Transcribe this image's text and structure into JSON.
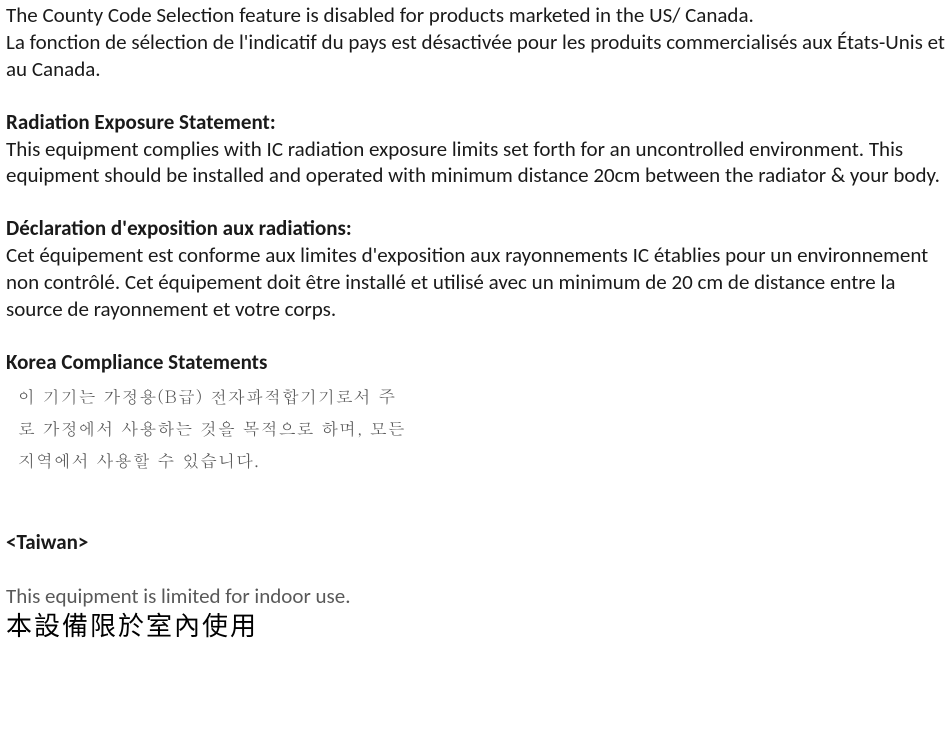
{
  "p1_en": "The County Code Selection feature is disabled for products marketed in the US/ Canada.",
  "p1_fr": "La fonction de sélection de l'indicatif du pays est désactivée pour les produits commercialisés aux États-Unis et au Canada.",
  "rad_heading": "Radiation Exposure Statement:",
  "rad_body": "This equipment complies with IC radiation exposure limits set forth for an uncontrolled environment. This equipment should be installed and operated with minimum distance 20cm between the radiator & your body.",
  "rad_fr_heading": "Déclaration d'exposition aux radiations:",
  "rad_fr_body": "Cet équipement est conforme aux limites d'exposition aux rayonnements IC établies pour un environnement non contrôlé. Cet équipement doit être installé et utilisé avec un minimum de 20 cm de distance entre la source de rayonnement et votre corps.",
  "korea_heading": "Korea Compliance Statements",
  "korea_line1_a": "이   기기는   가정용(",
  "korea_line1_b_label": "B급",
  "korea_line1_c": ")   전자파적합기기로서   주",
  "korea_line2": "로  가정에서  사용하는  것을  목적으로  하며,  모든",
  "korea_line3": "지역에서  사용할  수  있습니다.",
  "taiwan_heading": "<Taiwan>",
  "taiwan_caption": "This equipment is limited for indoor use.",
  "taiwan_chinese": "本設備限於室內使用"
}
